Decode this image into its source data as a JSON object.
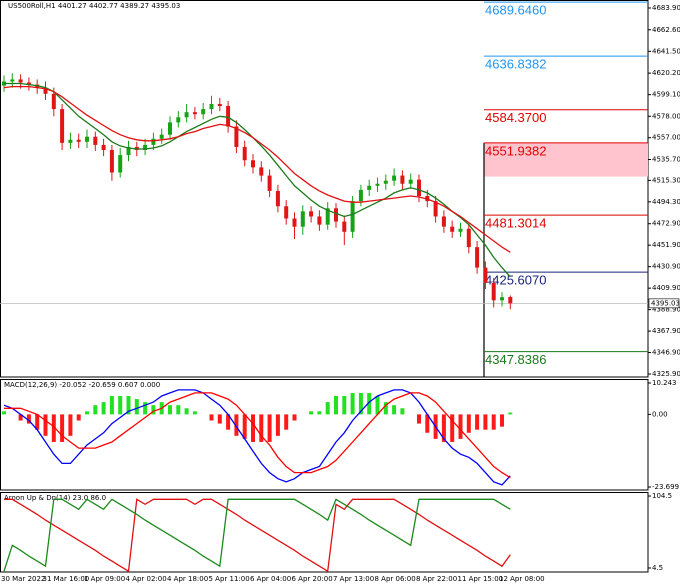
{
  "chart_data": [
    {
      "type": "candlestick",
      "title": "US500Roll,H1  4401.27 4402.77 4389.27 4395.03",
      "categories": [
        "30 Mar 2022",
        null,
        null,
        null,
        null,
        "31 Mar 16:00",
        null,
        null,
        null,
        null,
        "1 Apr 09:00",
        null,
        null,
        null,
        null,
        "4 Apr 02:00",
        null,
        null,
        null,
        null,
        "4 Apr 18:00",
        null,
        null,
        null,
        null,
        "5 Apr 11:00",
        null,
        null,
        null,
        null,
        "6 Apr 04:00",
        null,
        null,
        null,
        null,
        "6 Apr 20:00",
        null,
        null,
        null,
        null,
        "7 Apr 13:00",
        null,
        null,
        null,
        null,
        "8 Apr 06:00",
        null,
        null,
        null,
        null,
        "8 Apr 22:00",
        null,
        null,
        null,
        null,
        "11 Apr 15:00",
        null,
        null,
        null,
        null,
        "12 Apr 08:00",
        null
      ],
      "open": [
        4608,
        4612,
        4614,
        4611,
        4609,
        4606,
        4600,
        4585,
        4552,
        4555,
        4553,
        4558,
        4550,
        4545,
        4523,
        4540,
        4548,
        4545,
        4550,
        4556,
        4560,
        4572,
        4577,
        4582,
        4580,
        4585,
        4590,
        4588,
        4568,
        4548,
        4535,
        4528,
        4520,
        4505,
        4490,
        4478,
        4470,
        4485,
        4480,
        4472,
        4488,
        4475,
        4465,
        4495,
        4506,
        4510,
        4512,
        4515,
        4520,
        4512,
        4516,
        4500,
        4495,
        4480,
        4470,
        4465,
        4468,
        4450,
        4430,
        4415,
        4398,
        4401.27
      ],
      "high": [
        4618,
        4620,
        4619,
        4616,
        4614,
        4612,
        4606,
        4590,
        4562,
        4561,
        4565,
        4563,
        4556,
        4550,
        4547,
        4554,
        4553,
        4556,
        4562,
        4566,
        4578,
        4583,
        4590,
        4587,
        4591,
        4598,
        4596,
        4593,
        4574,
        4554,
        4541,
        4534,
        4526,
        4511,
        4496,
        4484,
        4491,
        4490,
        4486,
        4494,
        4493,
        4481,
        4500,
        4511,
        4516,
        4518,
        4521,
        4527,
        4525,
        4522,
        4521,
        4506,
        4500,
        4486,
        4476,
        4474,
        4473,
        4456,
        4436,
        4420,
        4406,
        4402.77
      ],
      "low": [
        4602,
        4606,
        4605,
        4603,
        4600,
        4594,
        4578,
        4545,
        4546,
        4547,
        4547,
        4544,
        4539,
        4515,
        4518,
        4534,
        4539,
        4540,
        4545,
        4551,
        4555,
        4567,
        4572,
        4575,
        4575,
        4580,
        4583,
        4562,
        4542,
        4529,
        4522,
        4514,
        4499,
        4484,
        4472,
        4458,
        4462,
        4474,
        4466,
        4467,
        4469,
        4452,
        4459,
        4490,
        4500,
        4504,
        4506,
        4510,
        4506,
        4507,
        4494,
        4489,
        4474,
        4464,
        4459,
        4460,
        4444,
        4424,
        4409,
        4391,
        4392,
        4389.27
      ],
      "close": [
        4612,
        4614,
        4611,
        4609,
        4606,
        4600,
        4585,
        4552,
        4555,
        4553,
        4558,
        4550,
        4545,
        4523,
        4540,
        4548,
        4545,
        4550,
        4556,
        4560,
        4572,
        4577,
        4582,
        4580,
        4585,
        4590,
        4588,
        4568,
        4548,
        4535,
        4528,
        4520,
        4505,
        4490,
        4478,
        4470,
        4485,
        4480,
        4472,
        4488,
        4475,
        4465,
        4495,
        4506,
        4510,
        4512,
        4515,
        4520,
        4512,
        4516,
        4500,
        4495,
        4480,
        4470,
        4465,
        4468,
        4450,
        4430,
        4415,
        4398,
        4401,
        4395.03
      ],
      "colors": {
        "up": "#16a316",
        "down": "#e01515"
      },
      "series": [
        {
          "color": "#1b7a1b",
          "values": [
            4610,
            4610,
            4610,
            4609,
            4608,
            4606,
            4602,
            4594,
            4586,
            4578,
            4572,
            4566,
            4560,
            4553,
            4549,
            4547,
            4546,
            4546,
            4547,
            4549,
            4553,
            4558,
            4563,
            4567,
            4571,
            4575,
            4578,
            4577,
            4572,
            4565,
            4557,
            4549,
            4540,
            4530,
            4520,
            4510,
            4503,
            4496,
            4490,
            4486,
            4483,
            4480,
            4482,
            4486,
            4490,
            4494,
            4498,
            4503,
            4506,
            4508,
            4506,
            4503,
            4498,
            4492,
            4485,
            4479,
            4472,
            4462,
            4452,
            4440,
            4430,
            4421
          ]
        },
        {
          "color": "#e01010",
          "values": [
            4606,
            4607,
            4607,
            4607,
            4606,
            4605,
            4602,
            4597,
            4591,
            4585,
            4579,
            4574,
            4569,
            4564,
            4560,
            4557,
            4555,
            4554,
            4554,
            4555,
            4556,
            4558,
            4561,
            4563,
            4566,
            4568,
            4570,
            4569,
            4566,
            4562,
            4557,
            4551,
            4545,
            4538,
            4530,
            4522,
            4516,
            4510,
            4505,
            4501,
            4498,
            4495,
            4494,
            4494,
            4495,
            4496,
            4497,
            4498,
            4499,
            4500,
            4499,
            4497,
            4494,
            4490,
            4485,
            4480,
            4474,
            4468,
            4462,
            4456,
            4450,
            4445
          ]
        }
      ],
      "last_price": 4395.03,
      "levels": [
        {
          "value": 4689.646,
          "label": "4689.6460",
          "color": "#2196f3"
        },
        {
          "value": 4636.8382,
          "label": "4636.8382",
          "color": "#2196f3"
        },
        {
          "value": 4584.37,
          "label": "4584.3700",
          "color": "#e00000"
        },
        {
          "value": 4551.9382,
          "label": "4551.9382",
          "color": "#e00000",
          "zone_low": 4519
        },
        {
          "value": 4481.3014,
          "label": "4481.3014",
          "color": "#e00000"
        },
        {
          "value": 4425.607,
          "label": "4425.6070",
          "color": "#1a237e"
        },
        {
          "value": 4347.8386,
          "label": "4347.8386",
          "color": "#1a7a1a"
        }
      ],
      "ylim": [
        4323,
        4691.7
      ],
      "yticks": [
        {
          "value": 4683.9,
          "label": "4683.90"
        },
        {
          "value": 4662.6,
          "label": "4662.60"
        },
        {
          "value": 4641.5,
          "label": "4641.50"
        },
        {
          "value": 4620.2,
          "label": "4620.20"
        },
        {
          "value": 4599.1,
          "label": "4599.10"
        },
        {
          "value": 4578,
          "label": "4578.00"
        },
        {
          "value": 4557,
          "label": "4557.00"
        },
        {
          "value": 4535.7,
          "label": "4535.70"
        },
        {
          "value": 4515.3,
          "label": "4515.30"
        },
        {
          "value": 4494.3,
          "label": "4494.30"
        },
        {
          "value": 4472.9,
          "label": "4472.90"
        },
        {
          "value": 4451.9,
          "label": "4451.90"
        },
        {
          "value": 4430.9,
          "label": "4430.90"
        },
        {
          "value": 4409.9,
          "label": "4409.90"
        },
        {
          "value": 4388.9,
          "label": "4388.90"
        },
        {
          "value": 4367.9,
          "label": "4367.90"
        },
        {
          "value": 4346.9,
          "label": "4346.90"
        },
        {
          "value": 4325.9,
          "label": "4325.90"
        }
      ]
    },
    {
      "type": "macd",
      "title": "MACD(12,26,9) -20.052 -20.659 0.607 0.000",
      "histogram": {
        "colors": {
          "up": "#22e022",
          "down": "#ff1a1a"
        },
        "values": [
          1,
          0,
          -2,
          -3,
          -5,
          -7,
          -9,
          -9,
          -7,
          -2,
          1,
          3,
          4,
          6,
          6,
          6,
          5,
          4,
          3,
          4,
          3,
          3,
          2,
          1,
          0,
          -2,
          -3,
          -5,
          -7,
          -8,
          -9,
          -9,
          -9,
          -7,
          -5,
          -2,
          0,
          1,
          1,
          4,
          6,
          6,
          7,
          7,
          7,
          6,
          4,
          3,
          2,
          0,
          -3,
          -6,
          -8,
          -9,
          -9,
          -8,
          -6,
          -5,
          -5,
          -5,
          -4,
          0.607
        ]
      },
      "series": [
        {
          "color": "#0000ff",
          "values": [
            3,
            2,
            0,
            -2,
            -5,
            -9,
            -13,
            -16,
            -16,
            -13,
            -10,
            -8,
            -6,
            -3,
            -1,
            1,
            2,
            3,
            4,
            6,
            7,
            8,
            8,
            8,
            7,
            5,
            3,
            0,
            -4,
            -8,
            -12,
            -16,
            -19,
            -21,
            -22,
            -21,
            -19,
            -18,
            -17,
            -13,
            -9,
            -6,
            -2,
            1,
            4,
            6,
            7,
            8,
            8,
            7,
            4,
            0,
            -4,
            -8,
            -11,
            -13,
            -14,
            -16,
            -19,
            -22,
            -23,
            -20.052
          ]
        },
        {
          "color": "#ff0000",
          "values": [
            2,
            2,
            2,
            1,
            0,
            -2,
            -4,
            -7,
            -9,
            -11,
            -11,
            -11,
            -10,
            -9,
            -7,
            -5,
            -3,
            -1,
            1,
            2,
            4,
            5,
            6,
            7,
            7,
            7,
            6,
            5,
            3,
            0,
            -3,
            -7,
            -10,
            -14,
            -17,
            -19,
            -19,
            -19,
            -18,
            -17,
            -15,
            -12,
            -9,
            -6,
            -3,
            0,
            3,
            5,
            6,
            7,
            7,
            6,
            4,
            1,
            -2,
            -5,
            -8,
            -11,
            -14,
            -17,
            -19,
            -20.659
          ]
        }
      ],
      "ylim": [
        -24.68,
        11.55
      ],
      "yticks": [
        10.243,
        {
          "value": 0,
          "label": "0.00"
        },
        -23.699
      ]
    },
    {
      "type": "aroon",
      "title": "Aroon Up & Dn(14) 23.0 86.0",
      "series": [
        {
          "color": "#e01010",
          "values": [
            100,
            100,
            93,
            86,
            79,
            71,
            64,
            57,
            50,
            43,
            36,
            29,
            21,
            14,
            7,
            0,
            100,
            93,
            100,
            100,
            100,
            100,
            100,
            93,
            100,
            100,
            93,
            86,
            79,
            71,
            64,
            57,
            50,
            43,
            36,
            29,
            21,
            14,
            7,
            0,
            93,
            86,
            100,
            100,
            100,
            100,
            100,
            100,
            93,
            86,
            79,
            71,
            64,
            57,
            50,
            43,
            36,
            29,
            21,
            14,
            7,
            23
          ]
        },
        {
          "color": "#1a8a1a",
          "values": [
            0,
            36,
            29,
            21,
            14,
            7,
            100,
            100,
            93,
            86,
            100,
            93,
            86,
            100,
            93,
            86,
            79,
            71,
            64,
            57,
            50,
            43,
            36,
            29,
            21,
            14,
            7,
            100,
            100,
            100,
            100,
            100,
            100,
            100,
            100,
            100,
            93,
            86,
            79,
            71,
            100,
            93,
            86,
            79,
            71,
            64,
            57,
            50,
            43,
            36,
            100,
            100,
            100,
            100,
            100,
            100,
            100,
            100,
            100,
            100,
            93,
            86
          ]
        }
      ],
      "ylim": [
        -1.1,
        110.1
      ],
      "yticks": [
        104.5,
        4.5
      ]
    }
  ]
}
